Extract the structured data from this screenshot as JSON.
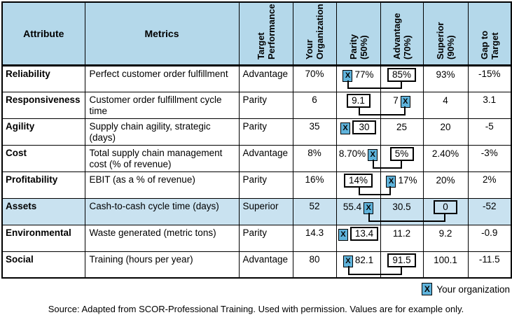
{
  "marker_char": "X",
  "colors": {
    "header_bg": "#B4D8EA",
    "highlight_bg": "#C9E2F0",
    "marker_bg": "#5FB3DB",
    "line": "#000000"
  },
  "header": {
    "attribute": "Attribute",
    "metrics": "Metrics",
    "rotated": [
      "Target\nPerformance",
      "Your\nOrganization",
      "Parity\n(50%)",
      "Advantage\n(70%)",
      "Superior\n(90%)",
      "Gap to\nTarget"
    ]
  },
  "rows": [
    {
      "attribute": "Reliability",
      "metric": "Perfect customer order fulfillment",
      "target": "Advantage",
      "your": "70%",
      "bench": [
        {
          "value": "77%",
          "marker": "before",
          "box": false
        },
        {
          "value": "85%",
          "marker": null,
          "box": true
        },
        {
          "value": "93%",
          "marker": null,
          "box": false
        }
      ],
      "gap": "-15%",
      "connector": true,
      "highlight": false
    },
    {
      "attribute": "Responsiveness",
      "metric": "Customer order fulfillment cycle time",
      "target": "Parity",
      "your": "6",
      "bench": [
        {
          "value": "9.1",
          "marker": null,
          "box": true
        },
        {
          "value": "7",
          "marker": "after",
          "box": false
        },
        {
          "value": "4",
          "marker": null,
          "box": false
        }
      ],
      "gap": "3.1",
      "connector": true,
      "highlight": false
    },
    {
      "attribute": "Agility",
      "metric": "Supply chain agility, strategic (days)",
      "target": "Parity",
      "your": "35",
      "bench": [
        {
          "value": "30",
          "marker": "before",
          "box": true
        },
        {
          "value": "25",
          "marker": null,
          "box": false
        },
        {
          "value": "20",
          "marker": null,
          "box": false
        }
      ],
      "gap": "-5",
      "connector": false,
      "highlight": false
    },
    {
      "attribute": "Cost",
      "metric": "Total supply chain management cost (% of revenue)",
      "target": "Advantage",
      "your": "8%",
      "bench": [
        {
          "value": "8.70%",
          "marker": "after",
          "box": false
        },
        {
          "value": "5%",
          "marker": null,
          "box": true
        },
        {
          "value": "2.40%",
          "marker": null,
          "box": false
        }
      ],
      "gap": "-3%",
      "connector": true,
      "highlight": false
    },
    {
      "attribute": "Profitability",
      "metric": "EBIT (as a % of revenue)",
      "target": "Parity",
      "your": "16%",
      "bench": [
        {
          "value": "14%",
          "marker": null,
          "box": true
        },
        {
          "value": "17%",
          "marker": "before",
          "box": false
        },
        {
          "value": "20%",
          "marker": null,
          "box": false
        }
      ],
      "gap": "2%",
      "connector": true,
      "highlight": false
    },
    {
      "attribute": "Assets",
      "metric": "Cash-to-cash cycle time (days)",
      "target": "Superior",
      "your": "52",
      "bench": [
        {
          "value": "55.4",
          "marker": "after",
          "box": false
        },
        {
          "value": "30.5",
          "marker": null,
          "box": false
        },
        {
          "value": "0",
          "marker": null,
          "box": true
        }
      ],
      "gap": "-52",
      "connector": true,
      "highlight": true
    },
    {
      "attribute": "Environmental",
      "metric": "Waste generated (metric tons)",
      "target": "Parity",
      "your": "14.3",
      "bench": [
        {
          "value": "13.4",
          "marker": "before",
          "box": true
        },
        {
          "value": "11.2",
          "marker": null,
          "box": false
        },
        {
          "value": "9.2",
          "marker": null,
          "box": false
        }
      ],
      "gap": "-0.9",
      "connector": false,
      "highlight": false
    },
    {
      "attribute": "Social",
      "metric": "Training (hours per year)",
      "target": "Advantage",
      "your": "80",
      "bench": [
        {
          "value": "82.1",
          "marker": "before",
          "box": false
        },
        {
          "value": "91.5",
          "marker": null,
          "box": true
        },
        {
          "value": "100.1",
          "marker": null,
          "box": false
        }
      ],
      "gap": "-11.5",
      "connector": true,
      "highlight": false
    }
  ],
  "legend": {
    "label": "Your organization"
  },
  "source": "Source: Adapted from SCOR-Professional Training. Used with permission. Values are for example only."
}
